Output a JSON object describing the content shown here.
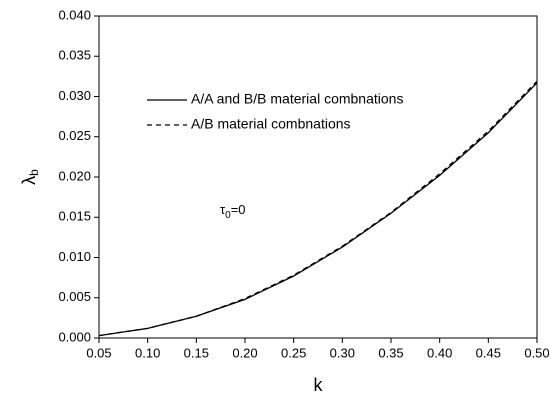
{
  "chart_data": {
    "type": "line",
    "xlabel": "k",
    "ylabel": "λ",
    "ylabel_subscript": "b",
    "annotation": {
      "symbol": "τ",
      "subscript": "0",
      "text": "=0"
    },
    "x": [
      0.05,
      0.1,
      0.15,
      0.2,
      0.25,
      0.3,
      0.35,
      0.4,
      0.45,
      0.5
    ],
    "series": [
      {
        "name": "A/A and B/B material combnations",
        "color": "#000000",
        "dash": "solid",
        "values": [
          0.0003,
          0.0012,
          0.0027,
          0.0048,
          0.0077,
          0.0113,
          0.0155,
          0.0202,
          0.0255,
          0.0317
        ]
      },
      {
        "name": "A/B material combnations",
        "color": "#000000",
        "dash": "dashed",
        "values": [
          0.0003,
          0.0012,
          0.0027,
          0.0049,
          0.0078,
          0.0114,
          0.0156,
          0.0204,
          0.0257,
          0.0319
        ]
      }
    ],
    "xlim": [
      0.05,
      0.5
    ],
    "ylim": [
      0,
      0.04
    ],
    "xticks": [
      {
        "value": 0.05,
        "label": "0.05"
      },
      {
        "value": 0.1,
        "label": "0.10"
      },
      {
        "value": 0.15,
        "label": "0.15"
      },
      {
        "value": 0.2,
        "label": "0.20"
      },
      {
        "value": 0.25,
        "label": "0.25"
      },
      {
        "value": 0.3,
        "label": "0.30"
      },
      {
        "value": 0.35,
        "label": "0.35"
      },
      {
        "value": 0.4,
        "label": "0.40"
      },
      {
        "value": 0.45,
        "label": "0.45"
      },
      {
        "value": 0.5,
        "label": "0.50"
      }
    ],
    "yticks": [
      {
        "value": 0,
        "label": "0.000"
      },
      {
        "value": 0.005,
        "label": "0.005"
      },
      {
        "value": 0.01,
        "label": "0.010"
      },
      {
        "value": 0.015,
        "label": "0.015"
      },
      {
        "value": 0.02,
        "label": "0.020"
      },
      {
        "value": 0.025,
        "label": "0.025"
      },
      {
        "value": 0.03,
        "label": "0.030"
      },
      {
        "value": 0.035,
        "label": "0.035"
      },
      {
        "value": 0.04,
        "label": "0.040"
      }
    ],
    "grid": false
  }
}
